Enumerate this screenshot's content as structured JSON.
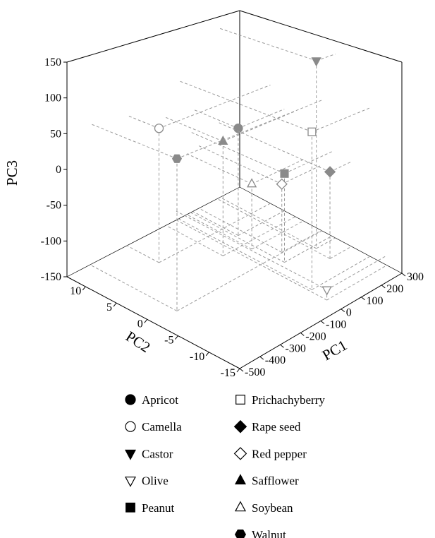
{
  "chart_data": {
    "type": "scatter3d",
    "xlabel": "PC1",
    "ylabel": "PC2",
    "zlabel": "PC3",
    "xlim": [
      -500,
      300
    ],
    "xticks": [
      -500,
      -400,
      -300,
      -200,
      -100,
      0,
      100,
      200,
      300
    ],
    "ylim": [
      -15,
      13
    ],
    "yticks": [
      -15,
      -10,
      -5,
      0,
      5,
      10
    ],
    "zlim": [
      -150,
      150
    ],
    "zticks": [
      -150,
      -100,
      -50,
      0,
      50,
      100,
      150
    ],
    "series": [
      {
        "name": "Apricot",
        "marker": "circle",
        "filled": true,
        "color": "#8a8a8a",
        "x": [
          83
        ],
        "y": [
          5.3
        ],
        "z": [
          14
        ]
      },
      {
        "name": "Camella",
        "marker": "circle",
        "filled": false,
        "color": "#8a8a8a",
        "x": [
          -222
        ],
        "y": [
          7.7
        ],
        "z": [
          44
        ]
      },
      {
        "name": "Castor",
        "marker": "triangle-down",
        "filled": true,
        "color": "#8a8a8a",
        "x": [
          209
        ],
        "y": [
          -3.5
        ],
        "z": [
          130
        ]
      },
      {
        "name": "Olive",
        "marker": "triangle-down",
        "filled": false,
        "color": "#8a8a8a",
        "x": [
          6
        ],
        "y": [
          -12.4
        ],
        "z": [
          -136
        ]
      },
      {
        "name": "Peanut",
        "marker": "square",
        "filled": true,
        "color": "#8a8a8a",
        "x": [
          73
        ],
        "y": [
          -2.9
        ],
        "z": [
          -21
        ]
      },
      {
        "name": "Prichachyberry",
        "marker": "square",
        "filled": false,
        "color": "#8a8a8a",
        "x": [
          17
        ],
        "y": [
          -9.5
        ],
        "z": [
          68
        ]
      },
      {
        "name": "Rape seed",
        "marker": "diamond",
        "filled": true,
        "color": "#8a8a8a",
        "x": [
          196
        ],
        "y": [
          -6.3
        ],
        "z": [
          -23
        ]
      },
      {
        "name": "Red pepper",
        "marker": "diamond",
        "filled": false,
        "color": "#8a8a8a",
        "x": [
          111
        ],
        "y": [
          -1.1
        ],
        "z": [
          -49
        ]
      },
      {
        "name": "Safflower",
        "marker": "triangle-up",
        "filled": true,
        "color": "#8a8a8a",
        "x": [
          -42
        ],
        "y": [
          3.4
        ],
        "z": [
          18
        ]
      },
      {
        "name": "Soybean",
        "marker": "triangle-up",
        "filled": false,
        "color": "#8a8a8a",
        "x": [
          55
        ],
        "y": [
          2.0
        ],
        "z": [
          -53
        ]
      },
      {
        "name": "Walnut",
        "marker": "hexagon",
        "filled": true,
        "color": "#8a8a8a",
        "x": [
          -393
        ],
        "y": [
          -1.2
        ],
        "z": [
          52
        ]
      }
    ]
  }
}
